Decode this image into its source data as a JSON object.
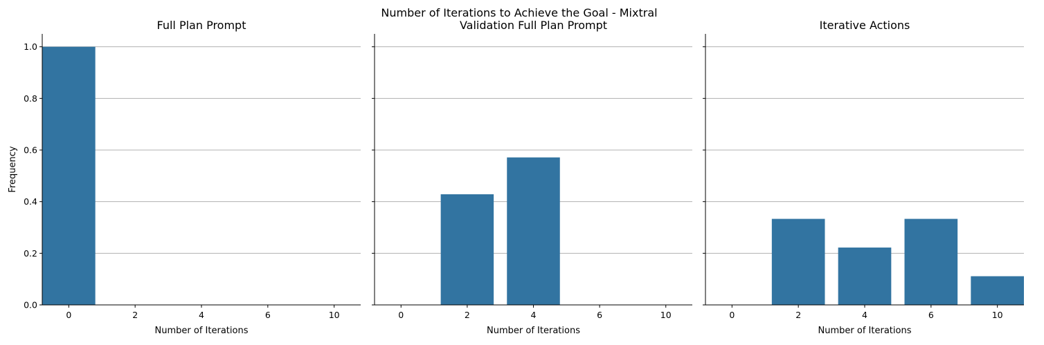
{
  "suptitle": "Number of Iterations to Achieve the Goal - Mixtral",
  "colors": {
    "bar": "#3274a1",
    "grid": "#b0b0b0",
    "axis": "#000000"
  },
  "chart_data": [
    {
      "type": "bar",
      "title": "Full Plan Prompt",
      "categories": [
        "0",
        "2",
        "4",
        "6",
        "10"
      ],
      "values": [
        1.0,
        0,
        0,
        0,
        0
      ],
      "xlabel": "Number of Iterations",
      "ylabel": "Frequency",
      "ylim": [
        0,
        1.05
      ],
      "yticks": [
        "0.0",
        "0.2",
        "0.4",
        "0.6",
        "0.8",
        "1.0"
      ],
      "grid": "horizontal"
    },
    {
      "type": "bar",
      "title": "Validation Full Plan Prompt",
      "categories": [
        "0",
        "2",
        "4",
        "6",
        "10"
      ],
      "values": [
        0,
        0.4286,
        0.5714,
        0,
        0
      ],
      "xlabel": "Number of Iterations",
      "ylabel": "",
      "ylim": [
        0,
        1.05
      ],
      "yticks": [
        "0.0",
        "0.2",
        "0.4",
        "0.6",
        "0.8",
        "1.0"
      ],
      "grid": "horizontal"
    },
    {
      "type": "bar",
      "title": "Iterative Actions",
      "categories": [
        "0",
        "2",
        "4",
        "6",
        "10"
      ],
      "values": [
        0,
        0.3333,
        0.2222,
        0.3333,
        0.1111
      ],
      "xlabel": "Number of Iterations",
      "ylabel": "",
      "ylim": [
        0,
        1.05
      ],
      "yticks": [
        "0.0",
        "0.2",
        "0.4",
        "0.6",
        "0.8",
        "1.0"
      ],
      "grid": "horizontal"
    }
  ]
}
